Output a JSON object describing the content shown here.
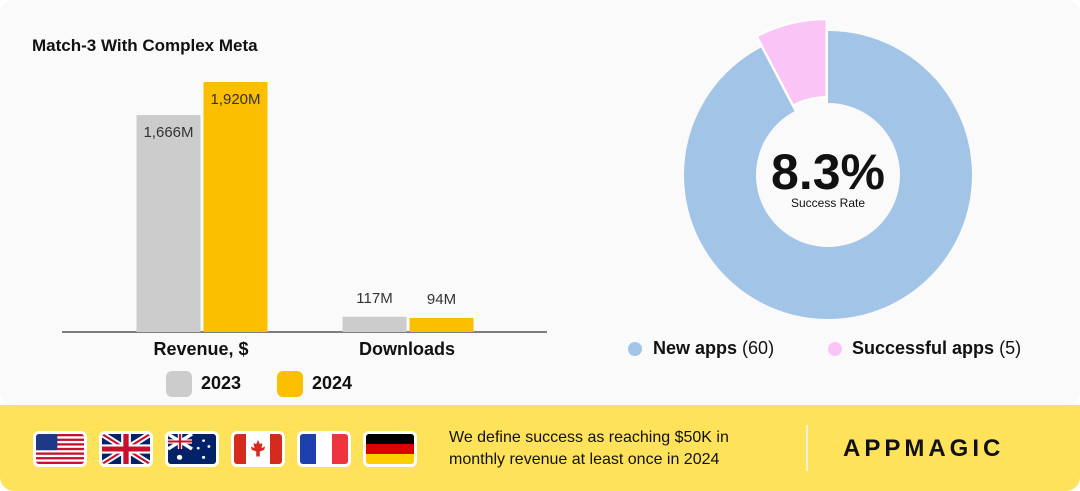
{
  "title": "Match-3 With Complex Meta",
  "chart_data": [
    {
      "type": "bar",
      "categories": [
        "Revenue, $",
        "Downloads"
      ],
      "series": [
        {
          "name": "2023",
          "values": [
            1666,
            117
          ],
          "labels": [
            "1,666M",
            "117M"
          ],
          "color": "#cccccc"
        },
        {
          "name": "2024",
          "values": [
            1920,
            94
          ],
          "labels": [
            "1,920M",
            "94M"
          ],
          "color": "#fbbf00"
        }
      ],
      "legend_position": "bottom"
    },
    {
      "type": "pie",
      "slices": [
        {
          "name": "New apps",
          "count": "(60)",
          "value": 60,
          "color": "#a2c4e6"
        },
        {
          "name": "Successful apps",
          "count": "(5)",
          "value": 5,
          "color": "#fbc4f7"
        }
      ],
      "center_value": "8.3%",
      "center_label": "Success Rate",
      "legend_position": "bottom"
    }
  ],
  "footer": {
    "flags": [
      "us-flag-icon",
      "uk-flag-icon",
      "australia-flag-icon",
      "canada-flag-icon",
      "france-flag-icon",
      "germany-flag-icon"
    ],
    "note": "We define success as reaching $50K in monthly revenue at least once in 2024",
    "brand": "APPMAGIC"
  }
}
